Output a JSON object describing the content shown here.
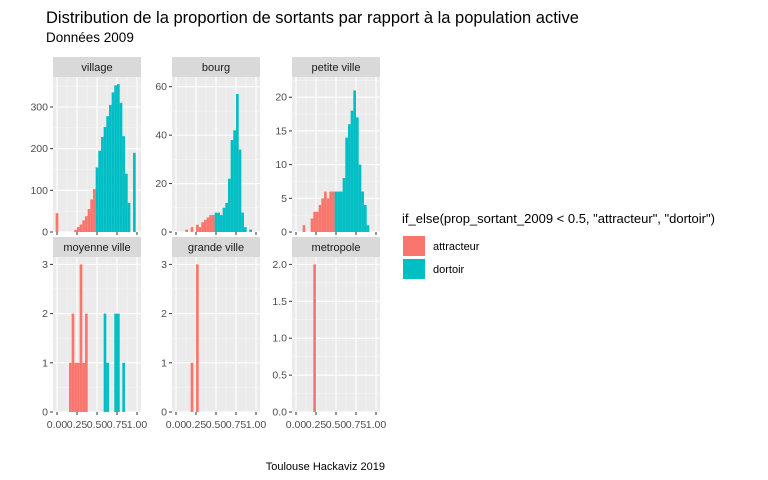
{
  "chart_data": {
    "type": "histogram-facets",
    "title": "Distribution de la proportion de sortants par rapport à la population active",
    "subtitle": "Données 2009",
    "caption": "Toulouse Hackaviz 2019",
    "xlabel": "",
    "ylabel": "",
    "xlim": [
      -0.05,
      1.05
    ],
    "x_ticks": [
      "0.00",
      "0.25",
      "0.50",
      "0.75",
      "1.00"
    ],
    "x_tick_values": [
      0,
      0.25,
      0.5,
      0.75,
      1.0
    ],
    "bin_width": 0.0333,
    "threshold": 0.5,
    "legend": {
      "title": "if_else(prop_sortant_2009 < 0.5, \"attracteur\", \"dortoir\")",
      "position": "right",
      "items": [
        {
          "label": "attracteur",
          "color": "#F8766D"
        },
        {
          "label": "dortoir",
          "color": "#00BFC4"
        }
      ]
    },
    "facets": [
      {
        "name": "village",
        "ylim": [
          0,
          372
        ],
        "y_ticks": [
          0,
          100,
          200,
          300
        ],
        "bins": [
          {
            "x": 0.0,
            "y": 45
          },
          {
            "x": 0.233,
            "y": 5
          },
          {
            "x": 0.267,
            "y": 12
          },
          {
            "x": 0.3,
            "y": 18
          },
          {
            "x": 0.333,
            "y": 28
          },
          {
            "x": 0.367,
            "y": 38
          },
          {
            "x": 0.4,
            "y": 55
          },
          {
            "x": 0.433,
            "y": 78
          },
          {
            "x": 0.467,
            "y": 103
          },
          {
            "x": 0.5,
            "y": 155
          },
          {
            "x": 0.533,
            "y": 195
          },
          {
            "x": 0.567,
            "y": 228
          },
          {
            "x": 0.6,
            "y": 252
          },
          {
            "x": 0.633,
            "y": 278
          },
          {
            "x": 0.667,
            "y": 305
          },
          {
            "x": 0.7,
            "y": 335
          },
          {
            "x": 0.733,
            "y": 352
          },
          {
            "x": 0.767,
            "y": 355
          },
          {
            "x": 0.8,
            "y": 310
          },
          {
            "x": 0.833,
            "y": 230
          },
          {
            "x": 0.867,
            "y": 140
          },
          {
            "x": 0.9,
            "y": 70
          },
          {
            "x": 0.967,
            "y": 190
          }
        ]
      },
      {
        "name": "bourg",
        "ylim": [
          0,
          64
        ],
        "y_ticks": [
          0,
          20,
          40,
          60
        ],
        "bins": [
          {
            "x": 0.133,
            "y": 1
          },
          {
            "x": 0.2,
            "y": 2
          },
          {
            "x": 0.267,
            "y": 3
          },
          {
            "x": 0.3,
            "y": 2
          },
          {
            "x": 0.333,
            "y": 4
          },
          {
            "x": 0.367,
            "y": 5
          },
          {
            "x": 0.4,
            "y": 6
          },
          {
            "x": 0.433,
            "y": 7
          },
          {
            "x": 0.467,
            "y": 7
          },
          {
            "x": 0.5,
            "y": 8
          },
          {
            "x": 0.533,
            "y": 8
          },
          {
            "x": 0.567,
            "y": 7
          },
          {
            "x": 0.6,
            "y": 10
          },
          {
            "x": 0.633,
            "y": 12
          },
          {
            "x": 0.667,
            "y": 22
          },
          {
            "x": 0.7,
            "y": 38
          },
          {
            "x": 0.733,
            "y": 42
          },
          {
            "x": 0.767,
            "y": 57
          },
          {
            "x": 0.8,
            "y": 34
          },
          {
            "x": 0.833,
            "y": 8
          },
          {
            "x": 0.867,
            "y": 2
          },
          {
            "x": 0.933,
            "y": 1
          }
        ]
      },
      {
        "name": "petite ville",
        "ylim": [
          0,
          23
        ],
        "y_ticks": [
          0,
          5,
          10,
          15,
          20
        ],
        "bins": [
          {
            "x": 0.1,
            "y": 1
          },
          {
            "x": 0.2,
            "y": 2
          },
          {
            "x": 0.233,
            "y": 3
          },
          {
            "x": 0.267,
            "y": 3
          },
          {
            "x": 0.3,
            "y": 4
          },
          {
            "x": 0.333,
            "y": 5
          },
          {
            "x": 0.367,
            "y": 6
          },
          {
            "x": 0.4,
            "y": 5
          },
          {
            "x": 0.433,
            "y": 6
          },
          {
            "x": 0.467,
            "y": 6
          },
          {
            "x": 0.5,
            "y": 6
          },
          {
            "x": 0.533,
            "y": 6
          },
          {
            "x": 0.567,
            "y": 6
          },
          {
            "x": 0.6,
            "y": 8
          },
          {
            "x": 0.633,
            "y": 14
          },
          {
            "x": 0.667,
            "y": 16
          },
          {
            "x": 0.7,
            "y": 18
          },
          {
            "x": 0.733,
            "y": 21
          },
          {
            "x": 0.767,
            "y": 17
          },
          {
            "x": 0.8,
            "y": 10
          },
          {
            "x": 0.833,
            "y": 6
          },
          {
            "x": 0.867,
            "y": 4
          },
          {
            "x": 0.9,
            "y": 1
          }
        ]
      },
      {
        "name": "moyenne ville",
        "ylim": [
          0,
          3.15
        ],
        "y_ticks": [
          0,
          1,
          2,
          3
        ],
        "bins": [
          {
            "x": 0.167,
            "y": 1
          },
          {
            "x": 0.2,
            "y": 2
          },
          {
            "x": 0.233,
            "y": 1
          },
          {
            "x": 0.267,
            "y": 1
          },
          {
            "x": 0.3,
            "y": 3
          },
          {
            "x": 0.333,
            "y": 1
          },
          {
            "x": 0.367,
            "y": 2
          },
          {
            "x": 0.6,
            "y": 2
          },
          {
            "x": 0.633,
            "y": 1
          },
          {
            "x": 0.733,
            "y": 2
          },
          {
            "x": 0.767,
            "y": 2
          },
          {
            "x": 0.833,
            "y": 1
          }
        ]
      },
      {
        "name": "grande ville",
        "ylim": [
          0,
          3.15
        ],
        "y_ticks": [
          0,
          1,
          2,
          3
        ],
        "bins": [
          {
            "x": 0.2,
            "y": 1
          },
          {
            "x": 0.267,
            "y": 3
          }
        ]
      },
      {
        "name": "metropole",
        "ylim": [
          0,
          2.1
        ],
        "y_ticks": [
          0,
          0.5,
          1.0,
          1.5,
          2.0
        ],
        "y_tick_labels": [
          "0.0",
          "0.5",
          "1.0",
          "1.5",
          "2.0"
        ],
        "bins": [
          {
            "x": 0.233,
            "y": 2
          }
        ]
      }
    ]
  }
}
